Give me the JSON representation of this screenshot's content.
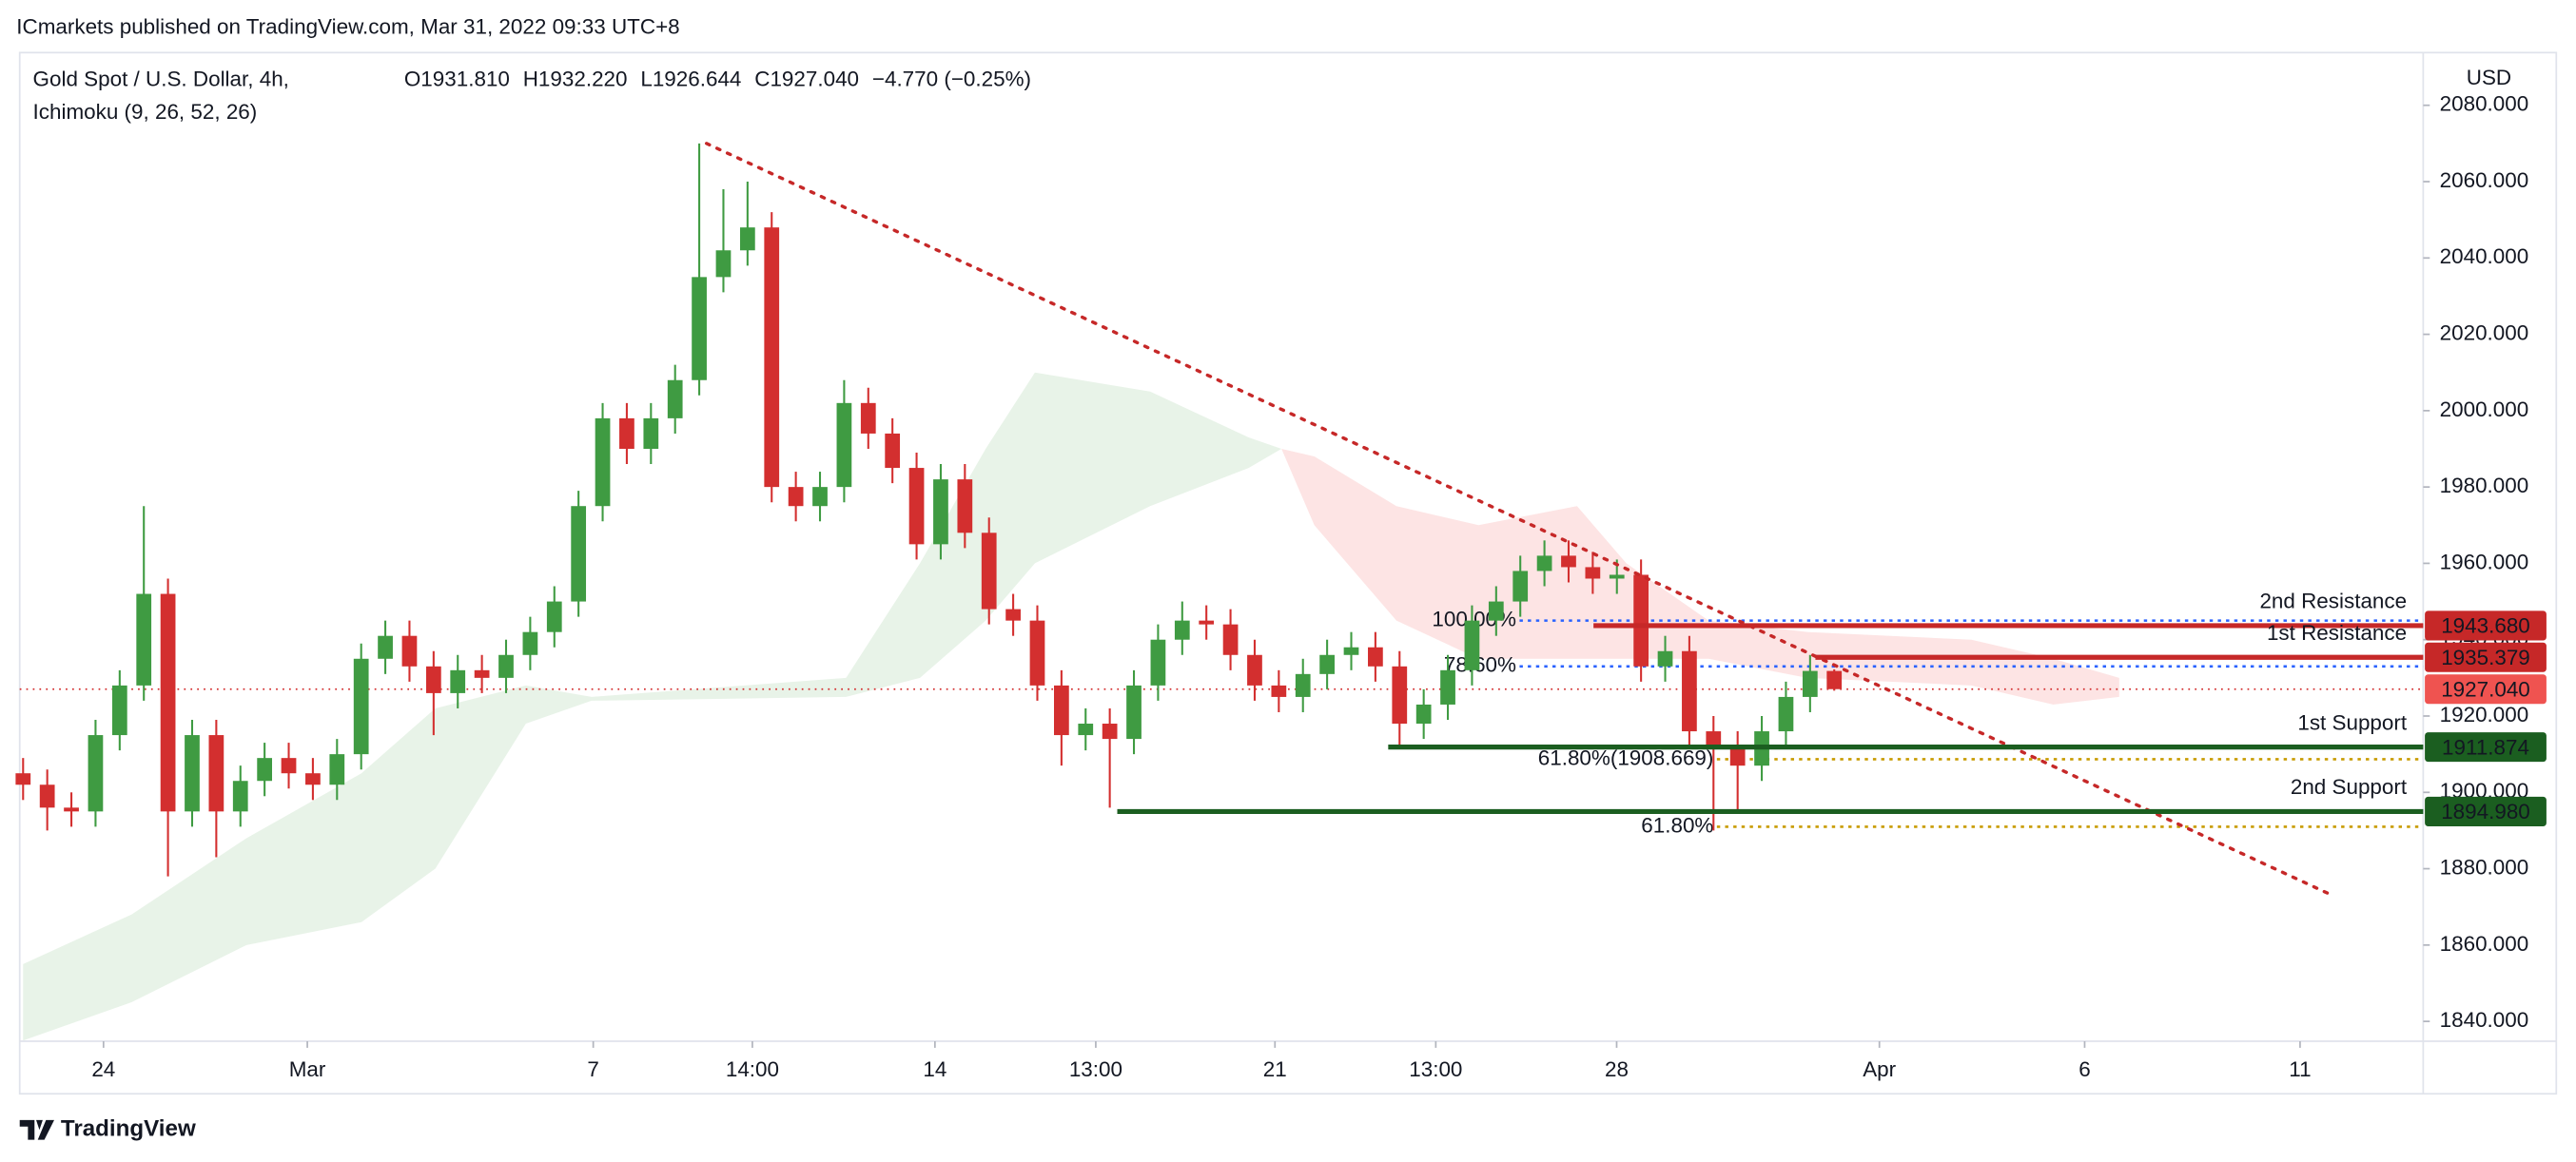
{
  "chart_data": {
    "type": "candlestick",
    "published": "ICmarkets published on TradingView.com, Mar 31, 2022 09:33 UTC+8",
    "symbol": "Gold Spot / U.S. Dollar, 4h,",
    "indicator": "Ichimoku (9, 26, 52, 26)",
    "ohlc": [
      {
        "key": "O",
        "value": 1931.81,
        "label": "1931.810"
      },
      {
        "key": "H",
        "value": 1932.22,
        "label": "1932.220"
      },
      {
        "key": "L",
        "value": 1926.644,
        "label": "1926.644"
      },
      {
        "key": "C",
        "value": 1927.04,
        "label": "1927.040"
      }
    ],
    "change": "−4.770 (−0.25%)",
    "currency": "USD",
    "brand": "TradingView",
    "up_color": "#3f9b42",
    "down_color": "#d32f2f",
    "xlim": [
      -0.14,
      99.39
    ],
    "ylim": [
      1834.8,
      2093.8
    ],
    "yticks": [
      {
        "value": 1840,
        "label": "1840.000"
      },
      {
        "value": 1860,
        "label": "1860.000"
      },
      {
        "value": 1880,
        "label": "1880.000"
      },
      {
        "value": 1900,
        "label": "1900.000"
      },
      {
        "value": 1920,
        "label": "1920.000"
      },
      {
        "value": 1940,
        "label": "1940.000"
      },
      {
        "value": 1960,
        "label": "1960.000"
      },
      {
        "value": 1980,
        "label": "1980.000"
      },
      {
        "value": 2000,
        "label": "2000.000"
      },
      {
        "value": 2020,
        "label": "2020.000"
      },
      {
        "value": 2040,
        "label": "2040.000"
      },
      {
        "value": 2060,
        "label": "2060.000"
      },
      {
        "value": 2080,
        "label": "2080.000"
      }
    ],
    "xticks": [
      {
        "value": 3.33,
        "label": "24"
      },
      {
        "value": 11.77,
        "label": "Mar"
      },
      {
        "value": 23.61,
        "label": "7"
      },
      {
        "value": 30.2,
        "label": "14:00"
      },
      {
        "value": 37.76,
        "label": "14"
      },
      {
        "value": 44.42,
        "label": "13:00"
      },
      {
        "value": 51.84,
        "label": "21"
      },
      {
        "value": 58.5,
        "label": "13:00"
      },
      {
        "value": 65.99,
        "label": "28"
      },
      {
        "value": 76.87,
        "label": "Apr"
      },
      {
        "value": 85.37,
        "label": "6"
      },
      {
        "value": 94.29,
        "label": "11"
      }
    ],
    "candles": {
      "x": [
        0,
        1,
        2,
        3,
        4,
        5,
        6,
        7,
        8,
        9,
        10,
        11,
        12,
        13,
        14,
        15,
        16,
        17,
        18,
        19,
        20,
        21,
        22,
        23,
        24,
        25,
        26,
        27,
        28,
        29,
        30,
        31,
        32,
        33,
        34,
        35,
        36,
        37,
        38,
        39,
        40,
        41,
        42,
        43,
        44,
        45,
        46,
        47,
        48,
        49,
        50,
        51,
        52,
        53,
        54,
        55,
        56,
        57,
        58,
        59,
        60,
        61,
        62,
        63,
        64,
        65,
        66,
        67,
        68,
        69,
        70,
        71,
        72,
        73,
        74,
        75
      ],
      "open": [
        1905,
        1902,
        1896,
        1895,
        1915,
        1928,
        1952,
        1895,
        1915,
        1895,
        1903,
        1909,
        1905,
        1902,
        1910,
        1935,
        1941,
        1933,
        1926,
        1932,
        1930,
        1936,
        1942,
        1950,
        1975,
        1998,
        1990,
        1998,
        2008,
        2035,
        2042,
        2048,
        1980,
        1975,
        1980,
        2002,
        1994,
        1985,
        1965,
        1982,
        1968,
        1948,
        1945,
        1928,
        1915,
        1918,
        1914,
        1928,
        1940,
        1945,
        1944,
        1936,
        1928,
        1925,
        1931,
        1936,
        1938,
        1933,
        1918,
        1923,
        1932,
        1945,
        1950,
        1958,
        1962,
        1959,
        1956,
        1957,
        1933,
        1937,
        1916,
        1912,
        1907,
        1916,
        1925,
        1931.81
      ],
      "high": [
        1909,
        1906,
        1900,
        1919,
        1932,
        1975,
        1956,
        1919,
        1919,
        1907,
        1913,
        1913,
        1909,
        1914,
        1939,
        1945,
        1945,
        1937,
        1936,
        1936,
        1940,
        1946,
        1954,
        1979,
        2002,
        2002,
        2002,
        2012,
        2070,
        2058,
        2060,
        2052,
        1984,
        1984,
        2008,
        2006,
        1998,
        1989,
        1986,
        1986,
        1972,
        1952,
        1949,
        1932,
        1922,
        1922,
        1932,
        1944,
        1950,
        1949,
        1948,
        1940,
        1932,
        1935,
        1940,
        1942,
        1942,
        1937,
        1927,
        1936,
        1949,
        1954,
        1962,
        1966,
        1966,
        1963,
        1961,
        1961,
        1941,
        1941,
        1920,
        1916,
        1920,
        1929,
        1936,
        1932.22
      ],
      "low": [
        1898,
        1890,
        1891,
        1891,
        1911,
        1924,
        1878,
        1891,
        1883,
        1891,
        1899,
        1901,
        1898,
        1898,
        1906,
        1931,
        1929,
        1915,
        1922,
        1926,
        1926,
        1932,
        1938,
        1946,
        1971,
        1986,
        1986,
        1994,
        2004,
        2031,
        2038,
        1976,
        1971,
        1971,
        1976,
        1990,
        1981,
        1961,
        1961,
        1964,
        1944,
        1941,
        1924,
        1907,
        1911,
        1896,
        1910,
        1924,
        1936,
        1940,
        1932,
        1924,
        1921,
        1921,
        1927,
        1932,
        1929,
        1912,
        1914,
        1919,
        1928,
        1941,
        1946,
        1954,
        1955,
        1952,
        1952,
        1929,
        1929,
        1912,
        1890,
        1895,
        1903,
        1912,
        1921,
        1926.644
      ],
      "close": [
        1902,
        1896,
        1895,
        1915,
        1928,
        1952,
        1895,
        1915,
        1895,
        1903,
        1909,
        1905,
        1902,
        1910,
        1935,
        1941,
        1933,
        1926,
        1932,
        1930,
        1936,
        1942,
        1950,
        1975,
        1998,
        1990,
        1998,
        2008,
        2035,
        2042,
        2048,
        1980,
        1975,
        1980,
        2002,
        1994,
        1985,
        1965,
        1982,
        1968,
        1948,
        1945,
        1928,
        1915,
        1918,
        1914,
        1928,
        1940,
        1945,
        1944,
        1936,
        1928,
        1925,
        1931,
        1936,
        1938,
        1933,
        1918,
        1923,
        1932,
        1945,
        1950,
        1958,
        1962,
        1959,
        1956,
        1957,
        1933,
        1937,
        1916,
        1912,
        1907,
        1916,
        1925,
        1931.81,
        1927.04
      ]
    },
    "last_label": "1927.040",
    "clouds": [
      {
        "color": "#e8f3e8",
        "x": [
          0,
          4.49,
          9.25,
          14.01,
          17.07,
          20.82,
          23.54,
          34.08,
          37.14,
          39.86,
          41.9,
          46.67,
          50.75,
          52.11
        ],
        "upper": [
          1855,
          1868,
          1888,
          1905,
          1922,
          1928,
          1925,
          1930,
          1960,
          1990,
          2010,
          2005,
          1993,
          1990
        ],
        "lower": [
          1835,
          1845,
          1860,
          1866,
          1880,
          1918,
          1924,
          1925,
          1930,
          1945,
          1960,
          1975,
          1985,
          1990
        ]
      },
      {
        "color": "#fde4e4",
        "x": [
          52.11,
          53.47,
          56.87,
          60.27,
          64.35,
          66.39,
          69.8,
          73.88,
          80.68,
          84.08,
          86.8
        ],
        "upper": [
          1990,
          1988,
          1975,
          1970,
          1975,
          1960,
          1945,
          1942,
          1940,
          1935,
          1930
        ],
        "lower": [
          1990,
          1970,
          1945,
          1935,
          1935,
          1935,
          1935,
          1930,
          1928,
          1923,
          1925
        ]
      }
    ],
    "trendline": {
      "color": "#c62828",
      "x": [
        28.3,
        95.6
      ],
      "y": [
        2070,
        1873.1
      ]
    },
    "levels": [
      {
        "label": "2nd Resistance",
        "value": 1943.68,
        "value_label": "1943.680",
        "x_start": 65.03,
        "color": "#c62828"
      },
      {
        "label": "1st Resistance",
        "value": 1935.379,
        "value_label": "1935.379",
        "x_start": 74.22,
        "color": "#c62828"
      },
      {
        "label": "1st Support",
        "value": 1911.874,
        "value_label": "1911.874",
        "x_start": 56.53,
        "color": "#1b5e20"
      },
      {
        "label": "2nd Support",
        "value": 1894.98,
        "value_label": "1894.980",
        "x_start": 45.31,
        "color": "#1b5e20"
      }
    ],
    "fibs": [
      {
        "label": "100.00%",
        "value": 1945,
        "x_start": 61.97,
        "color": "#2962ff"
      },
      {
        "label": "78.60%",
        "value": 1933,
        "x_start": 61.97,
        "color": "#2962ff"
      },
      {
        "label": "61.80%(1908.669)",
        "value": 1908.669,
        "x_start": 70.14,
        "color": "#c89b00"
      },
      {
        "label": "61.80%",
        "value": 1891,
        "x_start": 70.14,
        "color": "#c89b00"
      }
    ]
  }
}
